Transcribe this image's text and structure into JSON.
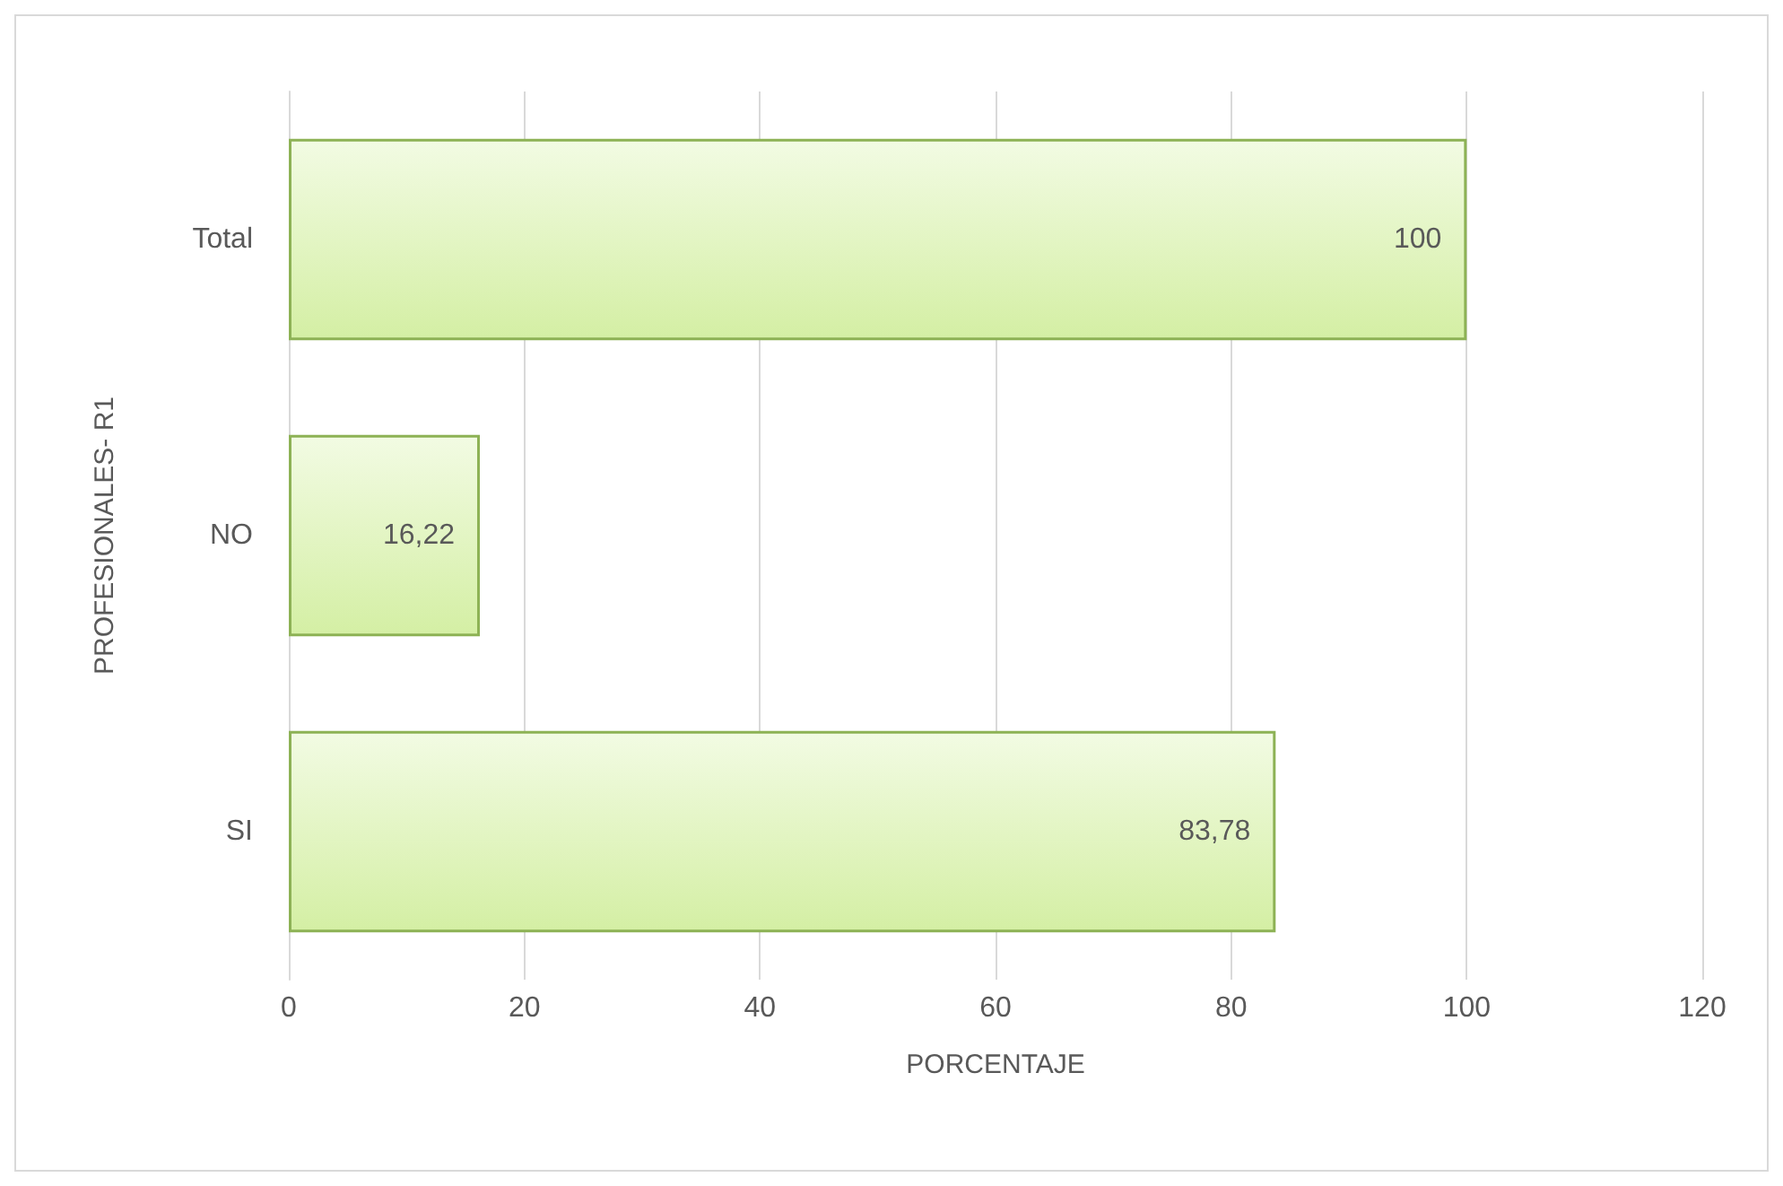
{
  "chart_data": {
    "type": "bar",
    "orientation": "horizontal",
    "categories": [
      "Total",
      "NO",
      "SI"
    ],
    "values": [
      100,
      16.22,
      83.78
    ],
    "value_labels": [
      "100",
      "16,22",
      "83,78"
    ],
    "color": "#8db255",
    "xlabel": "PORCENTAJE",
    "ylabel": "PROFESIONALES- R1",
    "xlim": [
      0,
      120
    ],
    "xticks": [
      0,
      20,
      40,
      60,
      80,
      100,
      120
    ],
    "grid": "x"
  }
}
